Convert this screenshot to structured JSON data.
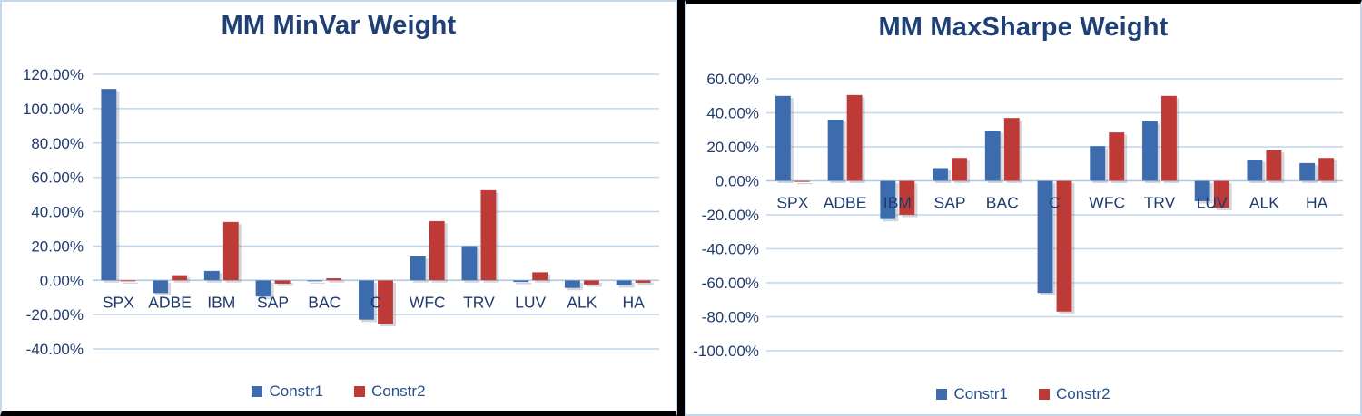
{
  "chart_data": [
    {
      "type": "bar",
      "title": "MM MinVar Weight",
      "categories": [
        "SPX",
        "ADBE",
        "IBM",
        "SAP",
        "BAC",
        "C",
        "WFC",
        "TRV",
        "LUV",
        "ALK",
        "HA"
      ],
      "series": [
        {
          "name": "Constr1",
          "color": "#3d6cae",
          "values": [
            111.5,
            -7.5,
            5.5,
            -9.5,
            -0.4,
            -23,
            14,
            20,
            -1,
            -4.5,
            -3
          ]
        },
        {
          "name": "Constr2",
          "color": "#be3a36",
          "values": [
            -0.5,
            3,
            34,
            -2,
            1.2,
            -25.5,
            34.5,
            52.5,
            4.7,
            -2.5,
            -1.5
          ]
        }
      ],
      "ylim": [
        -40,
        120
      ],
      "ytick_step": 20,
      "ytick_labels": [
        "120.00%",
        "100.00%",
        "80.00%",
        "60.00%",
        "40.00%",
        "20.00%",
        "0.00%",
        "-20.00%",
        "-40.00%"
      ],
      "xlabel": "",
      "ylabel": "",
      "grid": true,
      "legend_position": "bottom"
    },
    {
      "type": "bar",
      "title": "MM MaxSharpe Weight",
      "categories": [
        "SPX",
        "ADBE",
        "IBM",
        "SAP",
        "BAC",
        "C",
        "WFC",
        "TRV",
        "LUV",
        "ALK",
        "HA"
      ],
      "series": [
        {
          "name": "Constr1",
          "color": "#3d6cae",
          "values": [
            50,
            36,
            -22.5,
            7.5,
            29.5,
            -66,
            20.5,
            35,
            -12,
            12.5,
            10.5
          ]
        },
        {
          "name": "Constr2",
          "color": "#be3a36",
          "values": [
            -0.4,
            50.5,
            -20,
            13.5,
            37,
            -77,
            28.5,
            50,
            -16,
            18,
            13.5
          ]
        }
      ],
      "ylim": [
        -100,
        60
      ],
      "ytick_step": 20,
      "ytick_labels": [
        "60.00%",
        "40.00%",
        "20.00%",
        "0.00%",
        "-20.00%",
        "-40.00%",
        "-60.00%",
        "-80.00%",
        "-100.00%"
      ],
      "xlabel": "",
      "ylabel": "",
      "grid": true,
      "legend_position": "bottom"
    }
  ],
  "colors": {
    "title_text": "#1f4077",
    "axis_text": "#1f3b6e",
    "legend_text": "#27508f",
    "gridline": "#c2d6ec",
    "zero_line": "#aec8e4",
    "panel_border": "#c5d7ec",
    "frame": "#000000",
    "background": "#ffffff"
  }
}
